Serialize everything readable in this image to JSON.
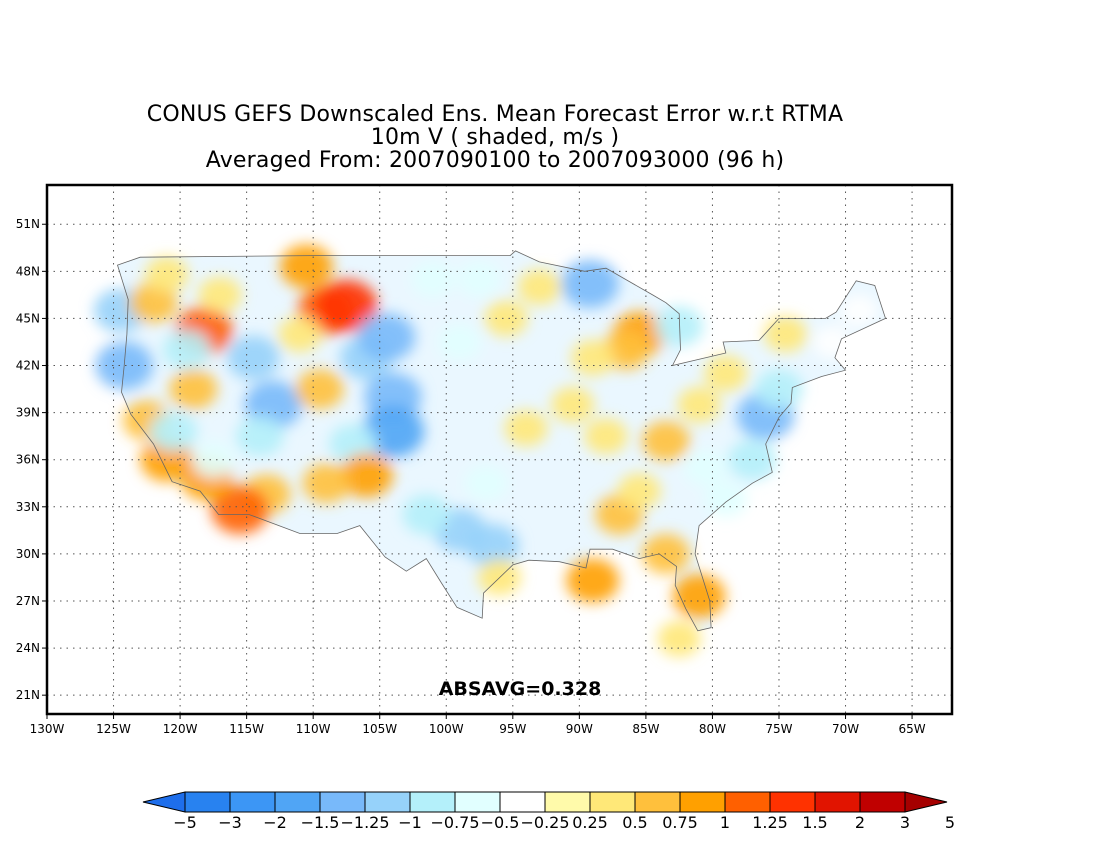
{
  "title_lines": [
    "CONUS GEFS Downscaled Ens. Mean Forecast Error w.r.t RTMA",
    "10m V ( shaded, m/s )",
    "Averaged From: 2007090100 to 2007093000 (96 h)"
  ],
  "annotation": "ABSAVG=0.328",
  "map": {
    "lon_range": [
      -130,
      -62
    ],
    "lat_range": [
      19.8,
      53.5
    ],
    "lon_ticks": [
      {
        "lon": -130,
        "label": "130W"
      },
      {
        "lon": -125,
        "label": "125W"
      },
      {
        "lon": -120,
        "label": "120W"
      },
      {
        "lon": -115,
        "label": "115W"
      },
      {
        "lon": -110,
        "label": "110W"
      },
      {
        "lon": -105,
        "label": "105W"
      },
      {
        "lon": -100,
        "label": "100W"
      },
      {
        "lon": -95,
        "label": "95W"
      },
      {
        "lon": -90,
        "label": "90W"
      },
      {
        "lon": -85,
        "label": "85W"
      },
      {
        "lon": -80,
        "label": "80W"
      },
      {
        "lon": -75,
        "label": "75W"
      },
      {
        "lon": -70,
        "label": "70W"
      },
      {
        "lon": -65,
        "label": "65W"
      }
    ],
    "lat_ticks": [
      {
        "lat": 21,
        "label": "21N"
      },
      {
        "lat": 24,
        "label": "24N"
      },
      {
        "lat": 27,
        "label": "27N"
      },
      {
        "lat": 30,
        "label": "30N"
      },
      {
        "lat": 33,
        "label": "33N"
      },
      {
        "lat": 36,
        "label": "36N"
      },
      {
        "lat": 39,
        "label": "39N"
      },
      {
        "lat": 42,
        "label": "42N"
      },
      {
        "lat": 45,
        "label": "45N"
      },
      {
        "lat": 48,
        "label": "48N"
      },
      {
        "lat": 51,
        "label": "51N"
      }
    ],
    "grid": true,
    "error_blobs": [
      {
        "lon": -124.2,
        "lat": 42.0,
        "v": -1.25
      },
      {
        "lon": -124.5,
        "lat": 45.5,
        "v": -1.0
      },
      {
        "lon": -122.0,
        "lat": 46.0,
        "v": 0.75
      },
      {
        "lon": -121.0,
        "lat": 47.8,
        "v": 0.5
      },
      {
        "lon": -118.2,
        "lat": 44.2,
        "v": 1.25
      },
      {
        "lon": -119.0,
        "lat": 40.5,
        "v": 0.75
      },
      {
        "lon": -117.0,
        "lat": 46.5,
        "v": 0.5
      },
      {
        "lon": -114.5,
        "lat": 42.5,
        "v": -1.0
      },
      {
        "lon": -113.0,
        "lat": 39.5,
        "v": -1.25
      },
      {
        "lon": -114.0,
        "lat": 37.5,
        "v": -0.75
      },
      {
        "lon": -110.5,
        "lat": 48.3,
        "v": 1.0
      },
      {
        "lon": -109.0,
        "lat": 45.5,
        "v": 1.25
      },
      {
        "lon": -107.5,
        "lat": 45.8,
        "v": 1.5
      },
      {
        "lon": -111.0,
        "lat": 44.0,
        "v": 0.5
      },
      {
        "lon": -109.5,
        "lat": 40.5,
        "v": 0.75
      },
      {
        "lon": -106.0,
        "lat": 42.5,
        "v": -1.0
      },
      {
        "lon": -104.5,
        "lat": 43.8,
        "v": -1.25
      },
      {
        "lon": -104.0,
        "lat": 40.0,
        "v": -1.25
      },
      {
        "lon": -104.0,
        "lat": 37.8,
        "v": -1.5
      },
      {
        "lon": -107.0,
        "lat": 37.0,
        "v": -0.75
      },
      {
        "lon": -106.0,
        "lat": 35.0,
        "v": 1.0
      },
      {
        "lon": -109.0,
        "lat": 34.5,
        "v": 0.75
      },
      {
        "lon": -113.5,
        "lat": 33.8,
        "v": 0.75
      },
      {
        "lon": -115.5,
        "lat": 32.8,
        "v": 1.25
      },
      {
        "lon": -118.0,
        "lat": 34.8,
        "v": 1.0
      },
      {
        "lon": -121.0,
        "lat": 36.0,
        "v": 1.0
      },
      {
        "lon": -122.5,
        "lat": 38.5,
        "v": 0.75
      },
      {
        "lon": -120.5,
        "lat": 37.8,
        "v": -0.75
      },
      {
        "lon": -117.5,
        "lat": 36.0,
        "v": -0.5
      },
      {
        "lon": -119.5,
        "lat": 43.0,
        "v": -0.75
      },
      {
        "lon": -101.0,
        "lat": 47.5,
        "v": -0.5
      },
      {
        "lon": -97.5,
        "lat": 47.5,
        "v": -0.5
      },
      {
        "lon": -99.0,
        "lat": 43.5,
        "v": -0.5
      },
      {
        "lon": -95.5,
        "lat": 45.0,
        "v": 0.5
      },
      {
        "lon": -93.0,
        "lat": 47.0,
        "v": 0.5
      },
      {
        "lon": -99.0,
        "lat": 31.5,
        "v": -1.0
      },
      {
        "lon": -96.5,
        "lat": 30.5,
        "v": -1.0
      },
      {
        "lon": -101.5,
        "lat": 32.5,
        "v": -0.75
      },
      {
        "lon": -97.0,
        "lat": 34.5,
        "v": -0.5
      },
      {
        "lon": -94.0,
        "lat": 38.0,
        "v": 0.5
      },
      {
        "lon": -96.0,
        "lat": 28.5,
        "v": 0.5
      },
      {
        "lon": -89.2,
        "lat": 47.2,
        "v": -1.25
      },
      {
        "lon": -85.5,
        "lat": 44.0,
        "v": 1.0
      },
      {
        "lon": -86.5,
        "lat": 43.0,
        "v": 0.75
      },
      {
        "lon": -89.0,
        "lat": 42.5,
        "v": 0.5
      },
      {
        "lon": -90.5,
        "lat": 39.5,
        "v": 0.5
      },
      {
        "lon": -88.0,
        "lat": 37.5,
        "v": 0.5
      },
      {
        "lon": -87.0,
        "lat": 32.5,
        "v": 0.75
      },
      {
        "lon": -85.5,
        "lat": 34.0,
        "v": 0.5
      },
      {
        "lon": -89.0,
        "lat": 28.3,
        "v": 1.0
      },
      {
        "lon": -83.5,
        "lat": 30.0,
        "v": 0.75
      },
      {
        "lon": -81.0,
        "lat": 27.3,
        "v": 1.0
      },
      {
        "lon": -82.5,
        "lat": 24.6,
        "v": 0.5
      },
      {
        "lon": -83.5,
        "lat": 37.2,
        "v": 0.75
      },
      {
        "lon": -81.0,
        "lat": 39.5,
        "v": 0.5
      },
      {
        "lon": -79.0,
        "lat": 41.5,
        "v": 0.5
      },
      {
        "lon": -74.5,
        "lat": 44.0,
        "v": 0.5
      },
      {
        "lon": -76.0,
        "lat": 38.8,
        "v": -1.25
      },
      {
        "lon": -75.0,
        "lat": 40.5,
        "v": -0.75
      },
      {
        "lon": -77.0,
        "lat": 36.0,
        "v": -0.75
      },
      {
        "lon": -80.5,
        "lat": 35.5,
        "v": -0.5
      },
      {
        "lon": -79.0,
        "lat": 33.5,
        "v": -0.5
      },
      {
        "lon": -82.5,
        "lat": 44.5,
        "v": -0.75
      },
      {
        "lon": -71.0,
        "lat": 43.5,
        "v": -0.25
      },
      {
        "lon": -69.0,
        "lat": 45.5,
        "v": -0.25
      }
    ],
    "land_color": "#eaf7ff"
  },
  "colorbar": {
    "levels": [
      "-5",
      "-3",
      "-2",
      "-1.5",
      "-1.25",
      "-1",
      "-0.75",
      "-0.5",
      "-0.25",
      "0.25",
      "0.5",
      "0.75",
      "1",
      "1.25",
      "1.5",
      "2",
      "3",
      "5"
    ],
    "colors": [
      "#1e6eeb",
      "#2882f0",
      "#3c96f5",
      "#50a5f5",
      "#78b9fa",
      "#96d2fa",
      "#b4f0fa",
      "#e1ffff",
      "#ffffff",
      "#fffaaa",
      "#ffe878",
      "#ffc03c",
      "#ffa000",
      "#ff6000",
      "#ff3200",
      "#e11400",
      "#c00000",
      "#a50000"
    ]
  }
}
